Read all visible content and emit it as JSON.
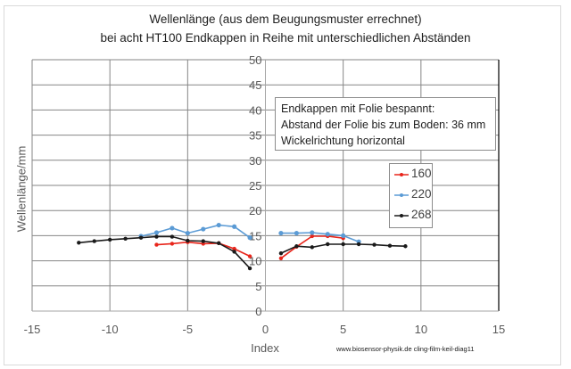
{
  "chart_data": {
    "type": "line",
    "title": "Wellenlänge (aus dem Beugungsmuster errechnet)",
    "subtitle": "bei acht  HT100 Endkappen in Reihe mit unterschiedlichen Abständen",
    "xlabel": "Index",
    "ylabel": "Wellenlänge/mm",
    "xlim": [
      -15,
      15
    ],
    "ylim": [
      0,
      50
    ],
    "xticks": [
      -15,
      -10,
      -5,
      0,
      5,
      10,
      15
    ],
    "yticks": [
      0,
      5,
      10,
      15,
      20,
      25,
      30,
      35,
      40,
      45,
      50
    ],
    "xtick_labels": [
      "-15",
      "-10",
      "-5",
      "0",
      "5",
      "10",
      "15"
    ],
    "ytick_labels": [
      "0",
      "5",
      "10",
      "15",
      "20",
      "25",
      "30",
      "35",
      "40",
      "45",
      "50"
    ],
    "grid": true,
    "legend_position": "right",
    "series": [
      {
        "name": "160",
        "color": "#e8251b",
        "x": [
          -7,
          -6,
          -5,
          -4,
          -3,
          -2,
          -1,
          1,
          2,
          3,
          4,
          5
        ],
        "y": [
          13.2,
          13.4,
          13.7,
          13.4,
          13.5,
          12.4,
          10.9,
          10.5,
          12.8,
          14.9,
          14.9,
          14.5
        ]
      },
      {
        "name": "220",
        "color": "#5b9bd5",
        "x": [
          -8,
          -7,
          -6,
          -5,
          -4,
          -3,
          -2,
          -1,
          1,
          2,
          3,
          4,
          5,
          6
        ],
        "y": [
          14.9,
          15.6,
          16.5,
          15.5,
          16.3,
          17.1,
          16.8,
          14.6,
          15.5,
          15.5,
          15.6,
          15.3,
          15.0,
          13.8
        ]
      },
      {
        "name": "268",
        "color": "#1a1a1a",
        "x": [
          -12,
          -11,
          -10,
          -9,
          -8,
          -7,
          -6,
          -5,
          -4,
          -3,
          -2,
          -1,
          1,
          2,
          3,
          4,
          5,
          6,
          7,
          8,
          9
        ],
        "y": [
          13.6,
          13.9,
          14.2,
          14.4,
          14.6,
          14.8,
          14.8,
          14.0,
          13.9,
          13.5,
          11.8,
          8.5,
          11.5,
          12.9,
          12.7,
          13.3,
          13.3,
          13.3,
          13.2,
          13.0,
          12.9
        ]
      }
    ],
    "annotation": {
      "lines": [
        "Endkappen mit Folie bespannt:",
        "Abstand der Folie bis zum Boden: 36 mm",
        "Wickelrichtung horizontal"
      ]
    },
    "footer": "www.biosensor-physik.de  cling-film-keil-diag11"
  },
  "colors": {
    "grid": "#868686",
    "axis": "#000000",
    "tick_label": "#595959"
  }
}
